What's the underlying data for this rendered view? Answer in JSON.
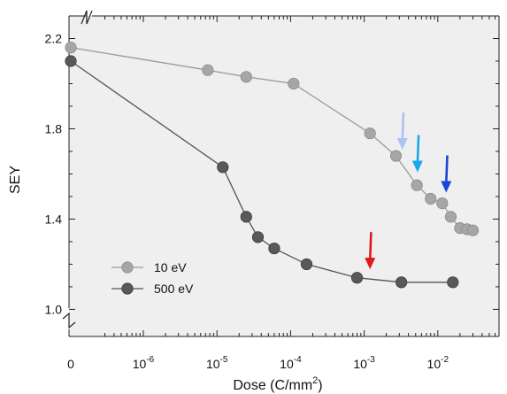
{
  "chart_data": {
    "type": "line",
    "xlabel_main": "Dose (C/mm",
    "xlabel_sup": "2",
    "xlabel_close": ")",
    "ylabel": "SEY",
    "x_scale": "log with broken axis at zero",
    "ylim": [
      0.88,
      2.3
    ],
    "yticks": [
      {
        "value": 1.0,
        "label": "1.0"
      },
      {
        "value": 1.4,
        "label": "1.4"
      },
      {
        "value": 1.8,
        "label": "1.8"
      },
      {
        "value": 2.2,
        "label": "2.2"
      }
    ],
    "xticks": [
      {
        "value": 0,
        "base": "0",
        "exp": ""
      },
      {
        "value": 1e-06,
        "base": "10",
        "exp": "-6"
      },
      {
        "value": 1e-05,
        "base": "10",
        "exp": "-5"
      },
      {
        "value": 0.0001,
        "base": "10",
        "exp": "-4"
      },
      {
        "value": 0.001,
        "base": "10",
        "exp": "-3"
      },
      {
        "value": 0.01,
        "base": "10",
        "exp": "-2"
      }
    ],
    "grid": false,
    "legend_position": "bottom-left",
    "series": [
      {
        "name": "10 eV",
        "color": "#a6a6a6",
        "line_color": "#9a9a9a",
        "points": [
          {
            "x": 0,
            "y": 2.16
          },
          {
            "x": 7.5e-06,
            "y": 2.06
          },
          {
            "x": 2.5e-05,
            "y": 2.03
          },
          {
            "x": 0.00011,
            "y": 2.0
          },
          {
            "x": 0.0012,
            "y": 1.78
          },
          {
            "x": 0.0027,
            "y": 1.68
          },
          {
            "x": 0.0052,
            "y": 1.55
          },
          {
            "x": 0.008,
            "y": 1.49
          },
          {
            "x": 0.0115,
            "y": 1.47
          },
          {
            "x": 0.015,
            "y": 1.41
          },
          {
            "x": 0.02,
            "y": 1.36
          },
          {
            "x": 0.025,
            "y": 1.355
          },
          {
            "x": 0.03,
            "y": 1.35
          }
        ]
      },
      {
        "name": "500 eV",
        "color": "#595959",
        "line_color": "#555555",
        "points": [
          {
            "x": 0,
            "y": 2.1
          },
          {
            "x": 1.2e-05,
            "y": 1.63
          },
          {
            "x": 2.5e-05,
            "y": 1.41
          },
          {
            "x": 3.6e-05,
            "y": 1.32
          },
          {
            "x": 6e-05,
            "y": 1.27
          },
          {
            "x": 0.000165,
            "y": 1.2
          },
          {
            "x": 0.0008,
            "y": 1.14
          },
          {
            "x": 0.0032,
            "y": 1.12
          },
          {
            "x": 0.016,
            "y": 1.12
          }
        ]
      }
    ],
    "arrows": [
      {
        "name": "light-blue-arrow",
        "x": 0.0033,
        "y": 1.68,
        "color": "#a9c3f2"
      },
      {
        "name": "cyan-arrow",
        "x": 0.0053,
        "y": 1.58,
        "color": "#1aa8e8"
      },
      {
        "name": "blue-arrow",
        "x": 0.013,
        "y": 1.49,
        "color": "#1846d6"
      },
      {
        "name": "red-arrow",
        "x": 0.0012,
        "y": 1.15,
        "color": "#e01a1a"
      }
    ]
  },
  "colors": {
    "plot_background": "#efefef",
    "axis": "#222222"
  }
}
